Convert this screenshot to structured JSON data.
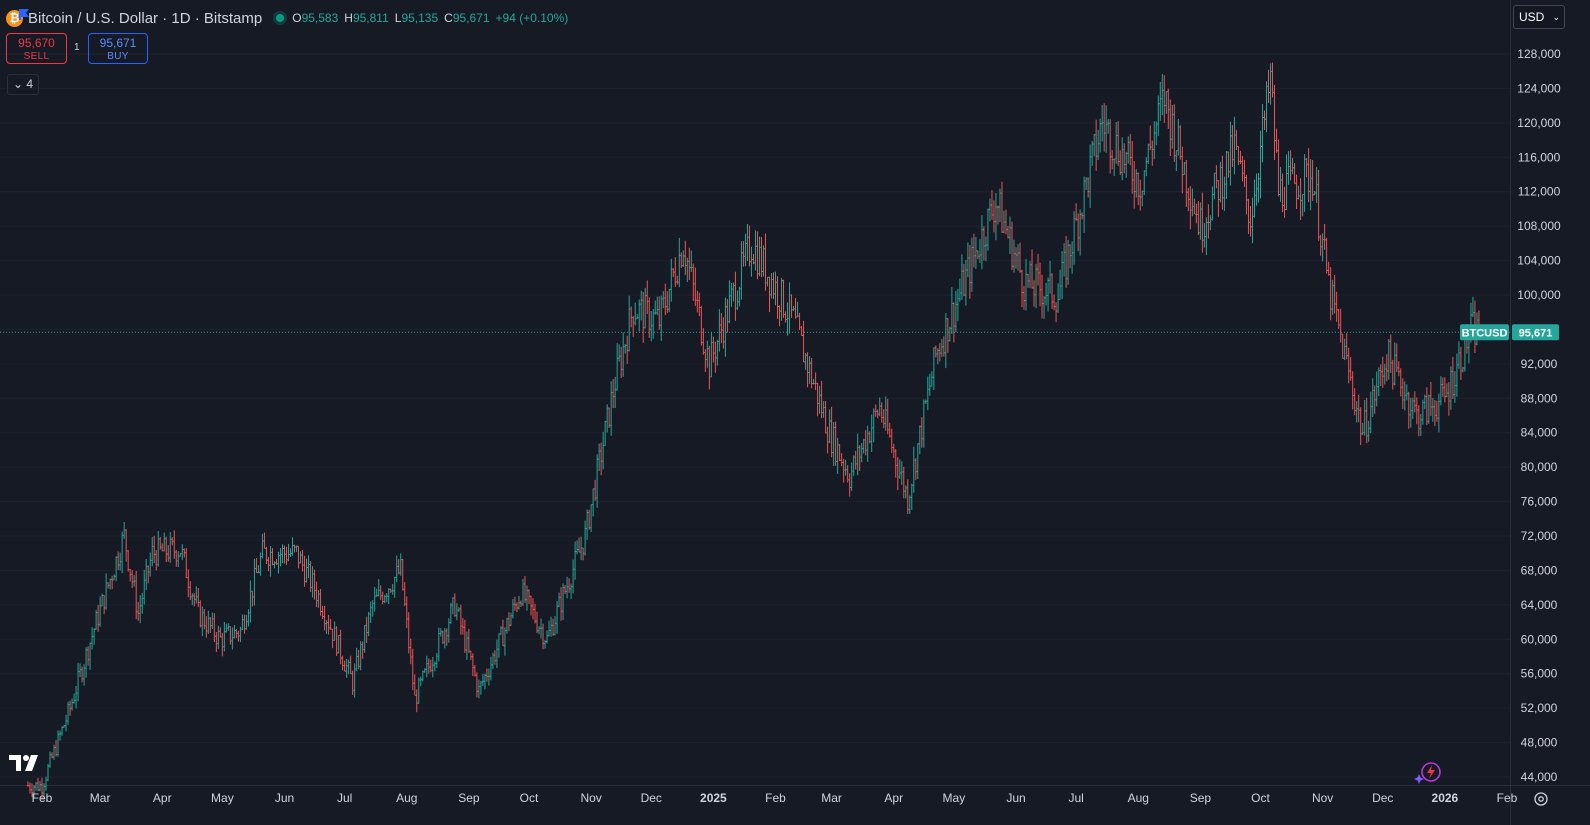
{
  "header": {
    "coin_glyph": "₿",
    "symbol": "Bitcoin / U.S. Dollar · 1D · Bitstamp",
    "ohlc": {
      "o_label": "O",
      "o": "95,583",
      "h_label": "H",
      "h": "95,811",
      "l_label": "L",
      "l": "95,135",
      "c_label": "C",
      "c": "95,671",
      "change": "+94 (+0.10%)"
    }
  },
  "trade": {
    "sell_price": "95,670",
    "sell_label": "SELL",
    "spread": "1",
    "buy_price": "95,671",
    "buy_label": "BUY"
  },
  "indicators_toggle": "4",
  "currency_select": "USD",
  "colors": {
    "background": "#161a25",
    "up": "#26a69a",
    "down": "#ef5350",
    "last_price": "#26a69a",
    "axis_text": "#d1d4dc",
    "gridline": "#1e222d"
  },
  "icons": [
    "bitcoin-icon",
    "flag-icon",
    "market-status-icon",
    "chevron-down-icon",
    "tradingview-logo-icon",
    "spark-icon",
    "settings-icon"
  ],
  "chart_data": {
    "type": "ohlc-bar",
    "interval": "1D",
    "y_axis": {
      "min": 43000,
      "max": 130000,
      "ticks": [
        44000,
        48000,
        52000,
        56000,
        60000,
        64000,
        68000,
        72000,
        76000,
        80000,
        84000,
        88000,
        92000,
        96000,
        100000,
        104000,
        108000,
        112000,
        116000,
        120000,
        124000,
        128000
      ]
    },
    "x_axis": {
      "labels": [
        "Feb",
        "Mar",
        "Apr",
        "May",
        "Jun",
        "Jul",
        "Aug",
        "Sep",
        "Oct",
        "Nov",
        "Dec",
        "2025",
        "Feb",
        "Mar",
        "Apr",
        "May",
        "Jun",
        "Jul",
        "Aug",
        "Sep",
        "Oct",
        "Nov",
        "Dec",
        "2026",
        "Feb"
      ]
    },
    "last_price": {
      "label": "BTCUSD",
      "value": 95671,
      "value_text": "95,671"
    },
    "series_close_anchors": [
      {
        "date": "2024-02-01",
        "close": 43000
      },
      {
        "date": "2024-02-15",
        "close": 52000
      },
      {
        "date": "2024-02-28",
        "close": 62000
      },
      {
        "date": "2024-03-13",
        "close": 72000
      },
      {
        "date": "2024-03-20",
        "close": 63000
      },
      {
        "date": "2024-03-27",
        "close": 70000
      },
      {
        "date": "2024-04-10",
        "close": 70500
      },
      {
        "date": "2024-04-19",
        "close": 63000
      },
      {
        "date": "2024-04-30",
        "close": 60000
      },
      {
        "date": "2024-05-10",
        "close": 61000
      },
      {
        "date": "2024-05-21",
        "close": 70000
      },
      {
        "date": "2024-06-07",
        "close": 70000
      },
      {
        "date": "2024-06-18",
        "close": 65000
      },
      {
        "date": "2024-07-05",
        "close": 55000
      },
      {
        "date": "2024-07-15",
        "close": 64000
      },
      {
        "date": "2024-07-29",
        "close": 68000
      },
      {
        "date": "2024-08-05",
        "close": 53000
      },
      {
        "date": "2024-08-25",
        "close": 64000
      },
      {
        "date": "2024-09-06",
        "close": 54000
      },
      {
        "date": "2024-09-27",
        "close": 65500
      },
      {
        "date": "2024-10-10",
        "close": 60000
      },
      {
        "date": "2024-10-29",
        "close": 72000
      },
      {
        "date": "2024-11-13",
        "close": 90000
      },
      {
        "date": "2024-11-22",
        "close": 98500
      },
      {
        "date": "2024-12-05",
        "close": 97000
      },
      {
        "date": "2024-12-17",
        "close": 106000
      },
      {
        "date": "2024-12-30",
        "close": 92000
      },
      {
        "date": "2025-01-20",
        "close": 106000
      },
      {
        "date": "2025-02-10",
        "close": 97000
      },
      {
        "date": "2025-02-28",
        "close": 84000
      },
      {
        "date": "2025-03-10",
        "close": 79000
      },
      {
        "date": "2025-03-25",
        "close": 87000
      },
      {
        "date": "2025-04-08",
        "close": 76500
      },
      {
        "date": "2025-04-22",
        "close": 93000
      },
      {
        "date": "2025-05-22",
        "close": 111000
      },
      {
        "date": "2025-06-05",
        "close": 101500
      },
      {
        "date": "2025-06-22",
        "close": 100000
      },
      {
        "date": "2025-07-14",
        "close": 120000
      },
      {
        "date": "2025-08-02",
        "close": 113000
      },
      {
        "date": "2025-08-14",
        "close": 123000
      },
      {
        "date": "2025-09-01",
        "close": 108000
      },
      {
        "date": "2025-09-18",
        "close": 117000
      },
      {
        "date": "2025-09-26",
        "close": 109000
      },
      {
        "date": "2025-10-06",
        "close": 125000
      },
      {
        "date": "2025-10-10",
        "close": 112000
      },
      {
        "date": "2025-10-27",
        "close": 114000
      },
      {
        "date": "2025-11-04",
        "close": 101000
      },
      {
        "date": "2025-11-21",
        "close": 84000
      },
      {
        "date": "2025-12-03",
        "close": 93000
      },
      {
        "date": "2025-12-18",
        "close": 86000
      },
      {
        "date": "2026-01-01",
        "close": 88000
      },
      {
        "date": "2026-01-14",
        "close": 96000
      },
      {
        "date": "2026-01-18",
        "close": 95671
      }
    ]
  }
}
